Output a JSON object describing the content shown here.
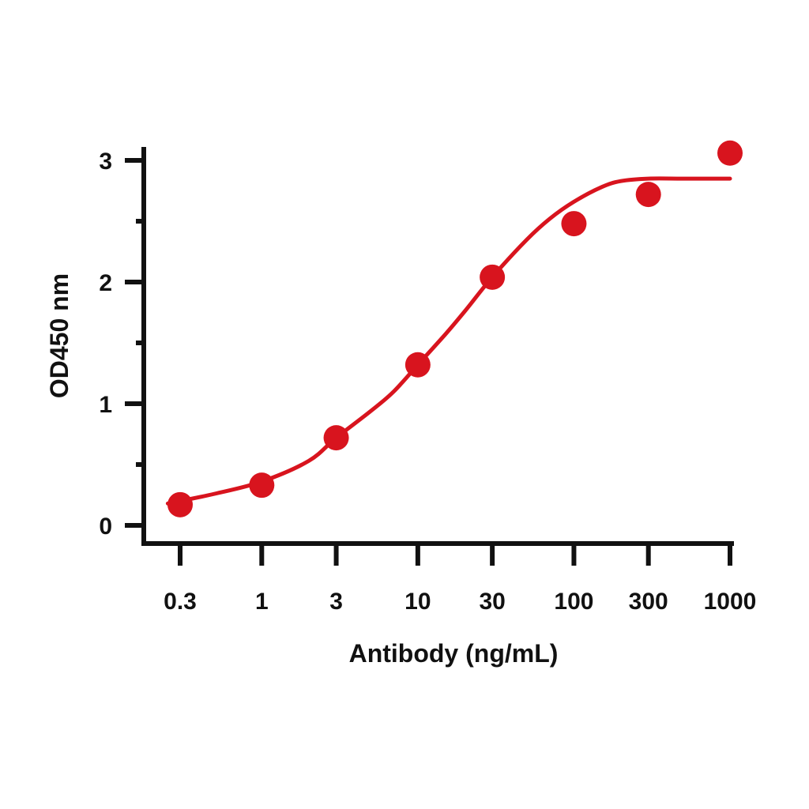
{
  "chart_data": {
    "type": "scatter",
    "title": "",
    "xlabel": "Antibody (ng/mL)",
    "ylabel": "OD450 nm",
    "x_scale": "log",
    "x_ticks": [
      0.3,
      1,
      3,
      10,
      30,
      100,
      300,
      1000
    ],
    "x_tick_labels": [
      "0.3",
      "1",
      "3",
      "10",
      "30",
      "100",
      "300",
      "1000"
    ],
    "y_ticks": [
      0,
      1,
      2,
      3
    ],
    "y_tick_labels": [
      "0",
      "1",
      "2",
      "3"
    ],
    "xlim": [
      0.3,
      1000
    ],
    "ylim": [
      0,
      3
    ],
    "grid": false,
    "legend": "none",
    "color": "#d8141e",
    "points": [
      {
        "x": 0.3,
        "y": 0.17
      },
      {
        "x": 1,
        "y": 0.33
      },
      {
        "x": 3,
        "y": 0.72
      },
      {
        "x": 10,
        "y": 1.32
      },
      {
        "x": 30,
        "y": 2.04
      },
      {
        "x": 100,
        "y": 2.48
      },
      {
        "x": 300,
        "y": 2.72
      },
      {
        "x": 1000,
        "y": 3.06
      }
    ],
    "fit_curve": {
      "x": [
        0.25,
        0.3,
        0.5,
        1,
        2,
        3,
        5,
        7,
        10,
        15,
        20,
        30,
        50,
        70,
        100,
        150,
        200,
        300,
        500,
        1000
      ],
      "y": [
        0.18,
        0.2,
        0.26,
        0.36,
        0.53,
        0.72,
        0.94,
        1.1,
        1.32,
        1.57,
        1.76,
        2.04,
        2.35,
        2.52,
        2.66,
        2.78,
        2.83,
        2.85,
        2.85,
        2.85
      ]
    }
  }
}
